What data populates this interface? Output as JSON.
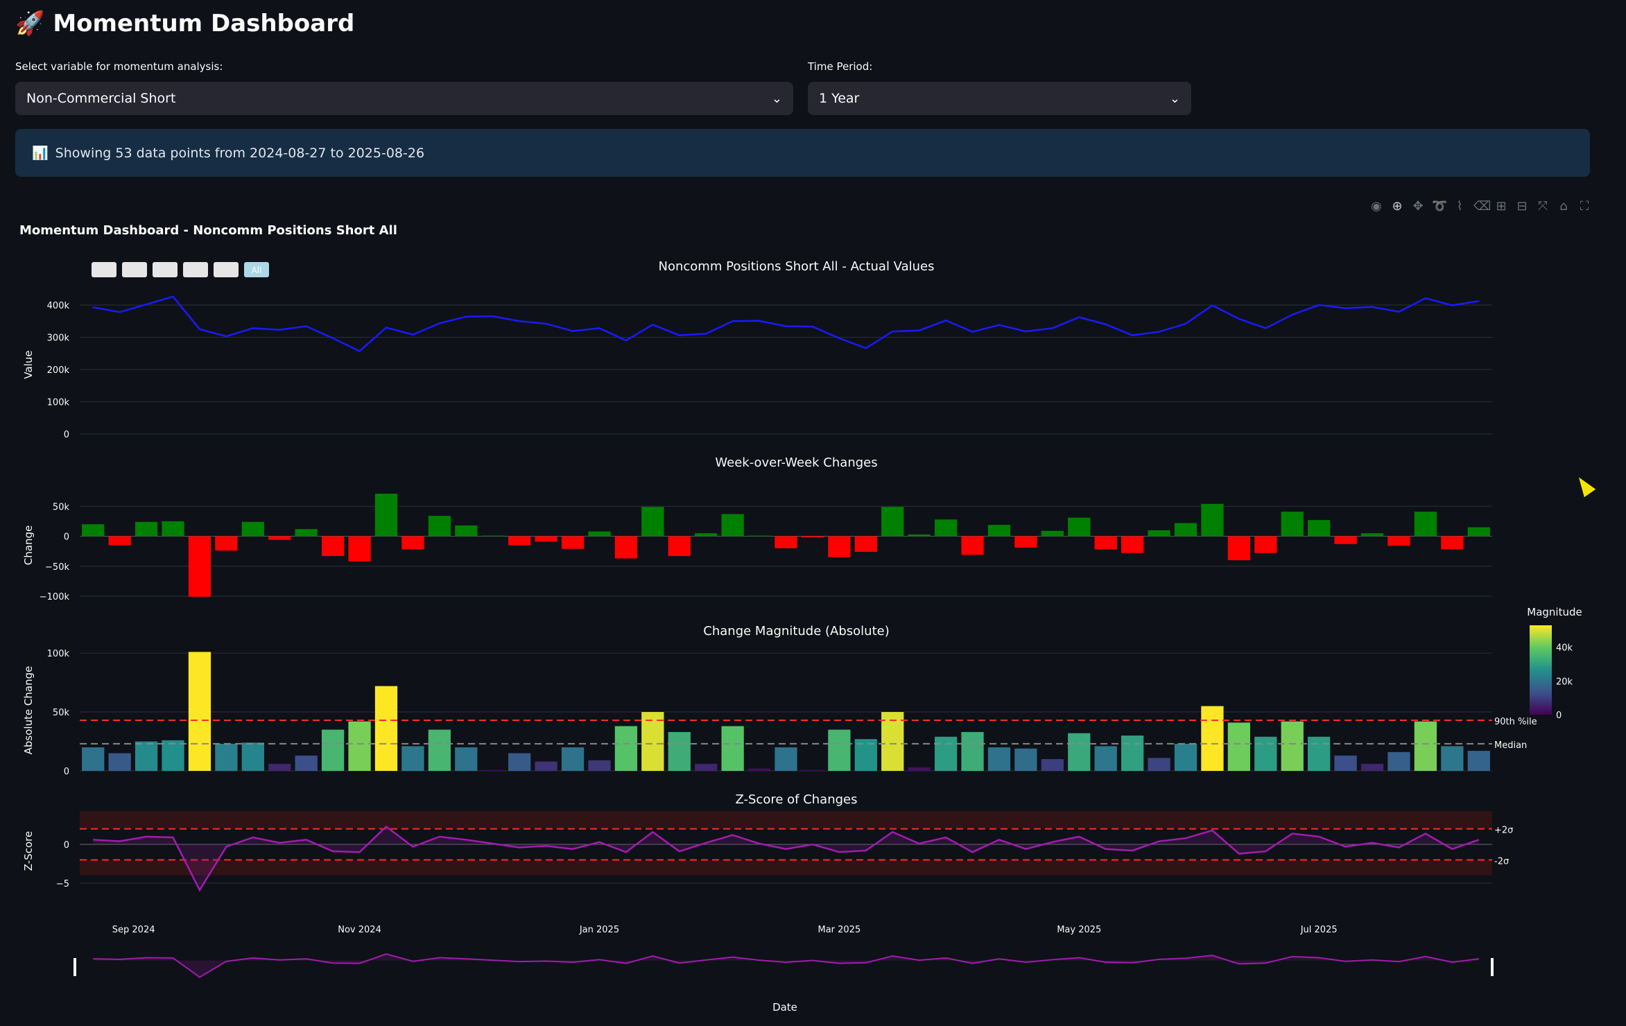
{
  "app": {
    "title": "Momentum Dashboard",
    "rocket_icon": "rocket-icon"
  },
  "controls": {
    "variable_label": "Select variable for momentum analysis:",
    "variable_value": "Non-Commercial Short",
    "period_label": "Time Period:",
    "period_value": "1 Year"
  },
  "info": {
    "text": "Showing 53 data points from 2024-08-27 to 2025-08-26",
    "icon": "bar-chart-icon"
  },
  "modebar_icons": [
    "camera-icon",
    "zoom-icon",
    "pan-icon",
    "lasso-icon",
    "select-icon",
    "erase-icon",
    "zoom-in-icon",
    "zoom-out-icon",
    "autoscale-icon",
    "home-icon",
    "fullscreen-icon"
  ],
  "colors": {
    "background": "#0e1117",
    "line": "#1a1aff",
    "positive": "#008000",
    "negative": "#ff0000",
    "zscore": "#a21caf",
    "threshold": "#ff2a2a",
    "median": "#888888"
  },
  "chart_data": {
    "title": "Momentum Dashboard - Noncomm Positions Short All",
    "range_buttons": [
      "",
      "",
      "",
      "",
      "",
      "All"
    ],
    "x_ticks": [
      "Sep 2024",
      "Nov 2024",
      "Jan 2025",
      "Mar 2025",
      "May 2025",
      "Jul 2025"
    ],
    "xlabel": "Date",
    "panels": [
      {
        "title": "Noncomm Positions Short All - Actual Values",
        "type": "line",
        "ylabel": "Value",
        "ylim": [
          0,
          430000
        ],
        "yticks": [
          "0",
          "100k",
          "200k",
          "300k",
          "400k"
        ],
        "values": [
          393000,
          378000,
          402000,
          426000,
          325000,
          303000,
          328000,
          323000,
          334000,
          297000,
          257000,
          330000,
          308000,
          343000,
          364000,
          365000,
          350000,
          342000,
          319000,
          328000,
          290000,
          339000,
          306000,
          311000,
          350000,
          351000,
          334000,
          333000,
          297000,
          266000,
          318000,
          321000,
          352000,
          317000,
          338000,
          318000,
          328000,
          362000,
          340000,
          306000,
          317000,
          342000,
          399000,
          357000,
          328000,
          370000,
          400000,
          390000,
          394000,
          379000,
          421000,
          399000,
          412000
        ]
      },
      {
        "title": "Week-over-Week Changes",
        "type": "bar",
        "ylabel": "Change",
        "ylim": [
          -100000,
          70000
        ],
        "yticks": [
          "−100k",
          "−50k",
          "0",
          "50k"
        ],
        "values": [
          20000,
          -15000,
          24000,
          25000,
          -101000,
          -24000,
          24000,
          -6000,
          12000,
          -33000,
          -42000,
          71000,
          -22000,
          34000,
          18000,
          1000,
          -15000,
          -9000,
          -21000,
          8000,
          -37000,
          49000,
          -33000,
          5000,
          37000,
          1000,
          -20000,
          -2000,
          -35000,
          -26000,
          49000,
          3000,
          28000,
          -31000,
          19000,
          -19000,
          9000,
          31000,
          -22000,
          -28000,
          10000,
          22000,
          54000,
          -40000,
          -28000,
          41000,
          27000,
          -13000,
          5000,
          -16000,
          41000,
          -22000,
          15000
        ]
      },
      {
        "title": "Change Magnitude (Absolute)",
        "type": "bar",
        "ylabel": "Absolute Change",
        "ylim": [
          0,
          103000
        ],
        "yticks": [
          "0",
          "50k",
          "100k"
        ],
        "values": [
          20000,
          15000,
          25000,
          26000,
          101000,
          23000,
          24000,
          6000,
          13000,
          35000,
          42000,
          72000,
          21000,
          35000,
          20000,
          1000,
          15000,
          8000,
          20000,
          9000,
          38000,
          50000,
          33000,
          6000,
          38000,
          2000,
          20000,
          1000,
          35000,
          27000,
          50000,
          3000,
          29000,
          33000,
          20000,
          19000,
          10000,
          32000,
          21000,
          30000,
          11000,
          23000,
          55000,
          41000,
          29000,
          42000,
          29000,
          13000,
          6000,
          16000,
          42000,
          21000,
          17000
        ],
        "p90": 43000,
        "median": 23000,
        "p90_label": "90th %ile",
        "median_label": "Median",
        "colorbar": {
          "title": "Magnitude",
          "ticks": [
            "0",
            "20k",
            "40k"
          ]
        }
      },
      {
        "title": "Z-Score of Changes",
        "type": "area",
        "ylabel": "Z-Score",
        "ylim": [
          -6,
          4.3
        ],
        "yticks": [
          "−5",
          "0"
        ],
        "upper_label": "+2σ",
        "lower_label": "-2σ",
        "values": [
          0.6,
          0.4,
          1.0,
          0.9,
          -5.9,
          -0.3,
          0.9,
          0.2,
          0.6,
          -0.9,
          -1.0,
          2.3,
          -0.3,
          1.0,
          0.6,
          0.1,
          -0.4,
          -0.2,
          -0.6,
          0.3,
          -1.0,
          1.6,
          -0.9,
          0.2,
          1.2,
          0.1,
          -0.6,
          0.0,
          -1.0,
          -0.8,
          1.6,
          0.1,
          0.9,
          -1.0,
          0.6,
          -0.6,
          0.3,
          1.0,
          -0.6,
          -0.8,
          0.4,
          0.8,
          1.8,
          -1.2,
          -0.9,
          1.4,
          1.0,
          -0.3,
          0.2,
          -0.4,
          1.4,
          -0.6,
          0.6
        ]
      }
    ]
  }
}
